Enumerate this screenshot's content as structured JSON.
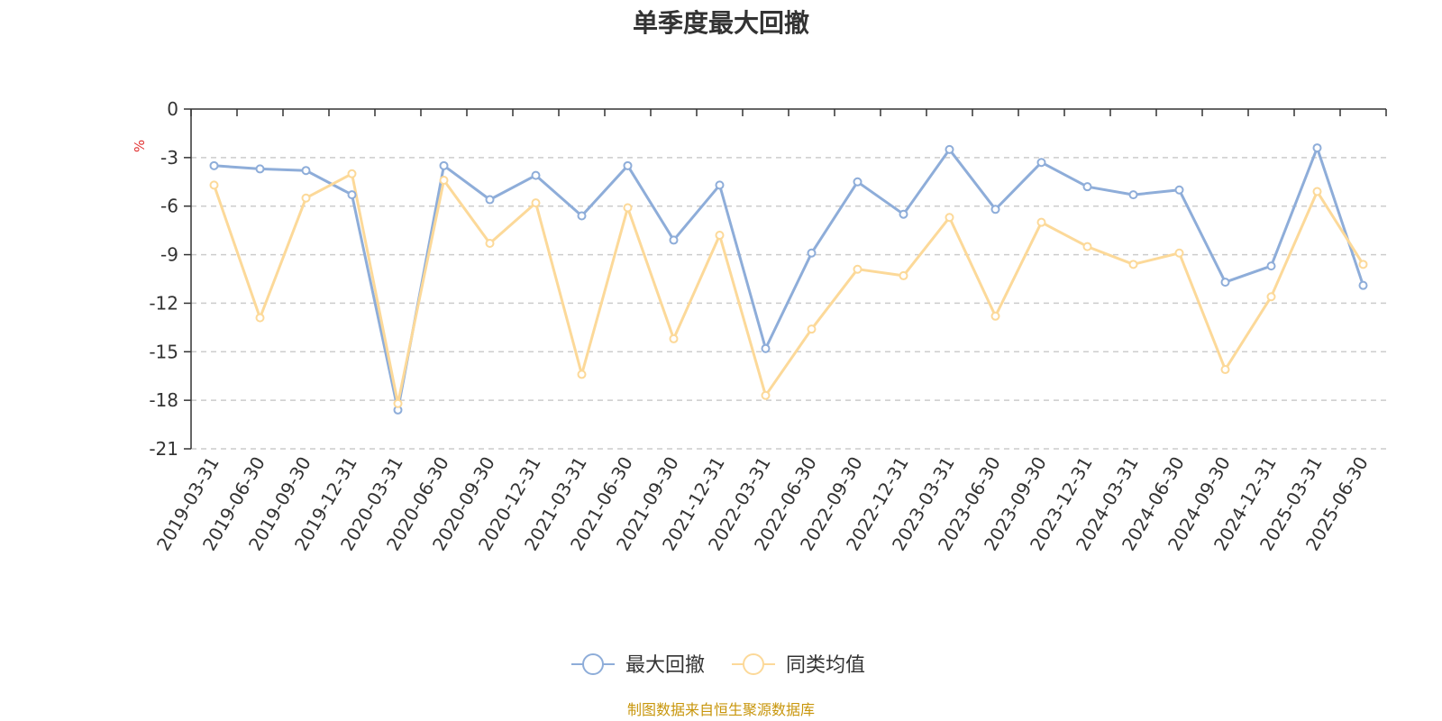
{
  "chart_data": {
    "type": "line",
    "title": "单季度最大回撤",
    "unit": "%",
    "ylim": [
      -21,
      0
    ],
    "yticks": [
      0,
      -3,
      -6,
      -9,
      -12,
      -15,
      -18,
      -21
    ],
    "grid": true,
    "legend_position": "bottom-center",
    "categories": [
      "2019-03-31",
      "2019-06-30",
      "2019-09-30",
      "2019-12-31",
      "2020-03-31",
      "2020-06-30",
      "2020-09-30",
      "2020-12-31",
      "2021-03-31",
      "2021-06-30",
      "2021-09-30",
      "2021-12-31",
      "2022-03-31",
      "2022-06-30",
      "2022-09-30",
      "2022-12-31",
      "2023-03-31",
      "2023-06-30",
      "2023-09-30",
      "2023-12-31",
      "2024-03-31",
      "2024-06-30",
      "2024-09-30",
      "2024-12-31",
      "2025-03-31",
      "2025-06-30"
    ],
    "series": [
      {
        "name": "最大回撤",
        "color": "#8eadd9",
        "values": [
          -3.5,
          -3.7,
          -3.8,
          -5.3,
          -18.6,
          -3.5,
          -5.6,
          -4.1,
          -6.6,
          -3.5,
          -8.1,
          -4.7,
          -14.8,
          -8.9,
          -4.5,
          -6.5,
          -2.5,
          -6.2,
          -3.3,
          -4.8,
          -5.3,
          -5.0,
          -10.7,
          -9.7,
          -2.4,
          -10.9
        ]
      },
      {
        "name": "同类均值",
        "color": "#fcd999",
        "values": [
          -4.7,
          -12.9,
          -5.5,
          -4.0,
          -18.2,
          -4.4,
          -8.3,
          -5.8,
          -16.4,
          -6.1,
          -14.2,
          -7.8,
          -17.7,
          -13.6,
          -9.9,
          -10.3,
          -6.7,
          -12.8,
          -7.0,
          -8.5,
          -9.6,
          -8.9,
          -16.1,
          -11.6,
          -5.1,
          -9.6
        ]
      }
    ]
  },
  "source_note": "制图数据来自恒生聚源数据库"
}
